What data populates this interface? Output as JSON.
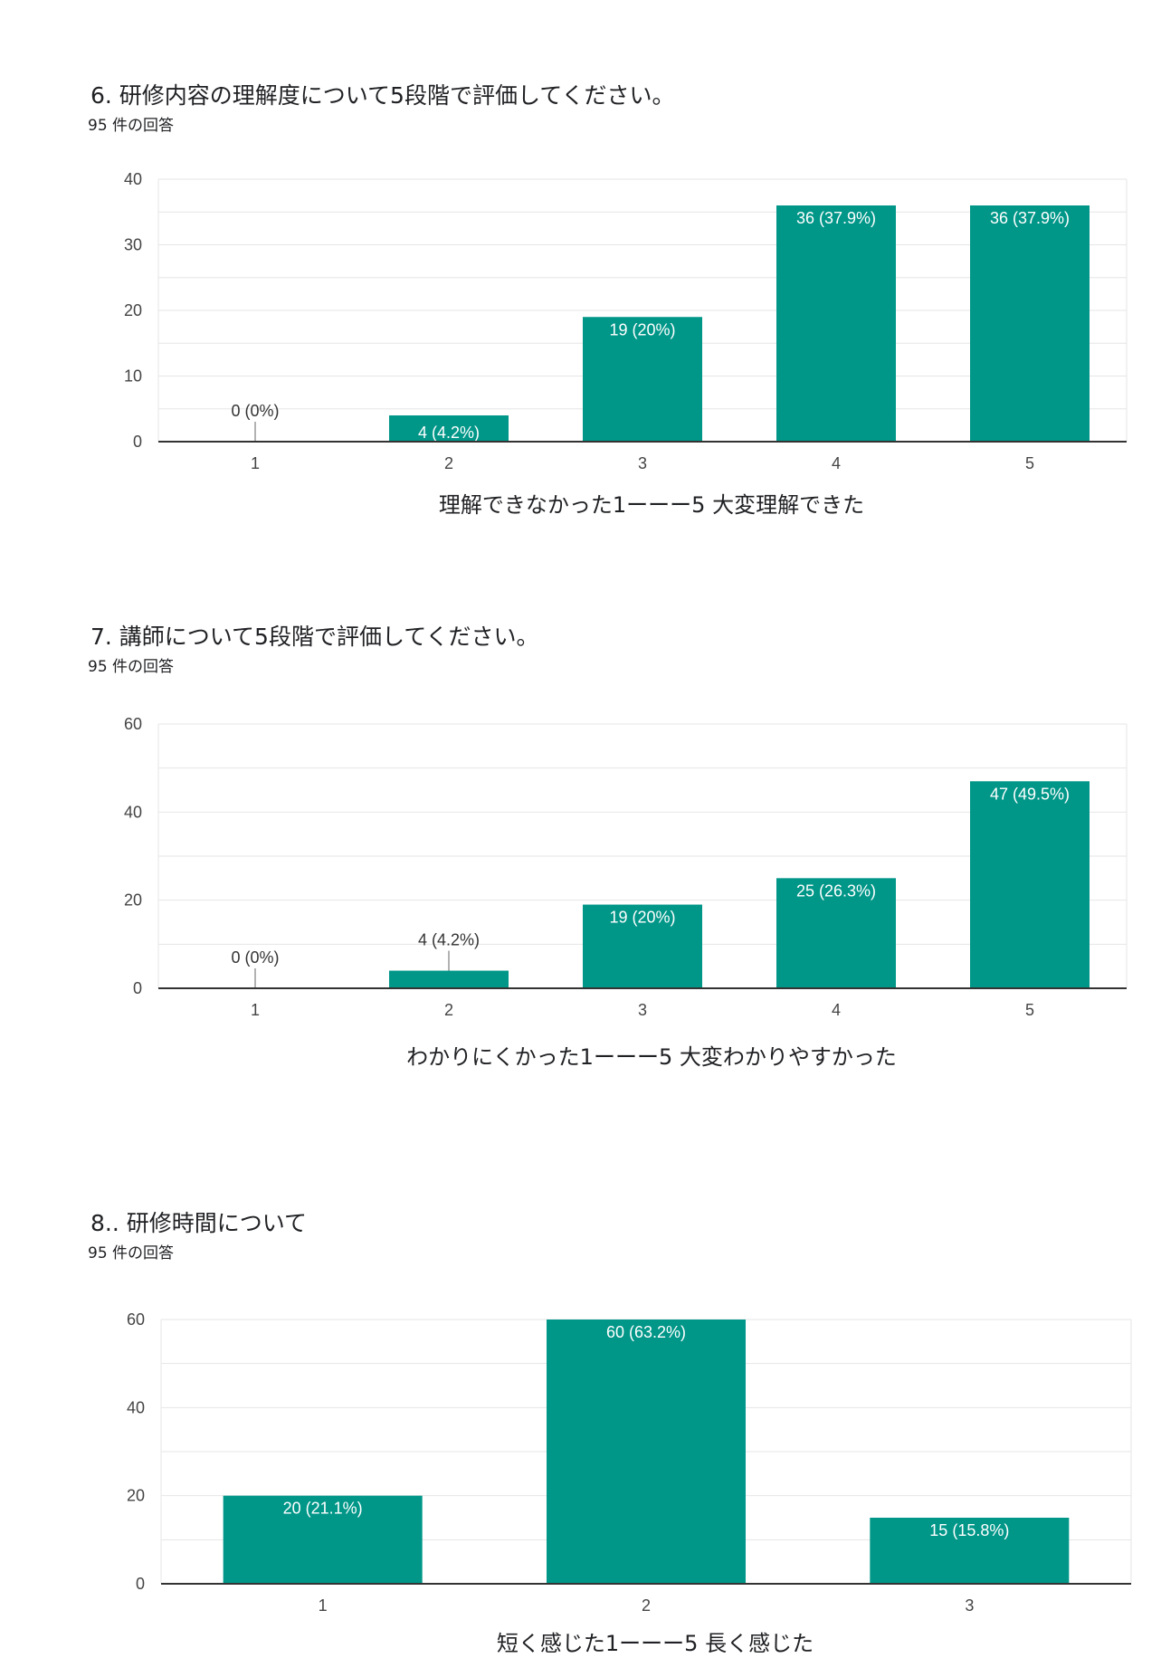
{
  "colors": {
    "bar": "#009688",
    "grid": "#e6e6e6",
    "axis": "#333333"
  },
  "charts": [
    {
      "title": "6.  研修内容の理解度について5段階で評価してください。",
      "responses": "95 件の回答"
    },
    {
      "title": "7.  講師について5段階で評価してください。",
      "responses": "95 件の回答"
    },
    {
      "title": "8..  研修時間について",
      "responses": "95 件の回答"
    }
  ],
  "chart_data": [
    {
      "type": "bar",
      "categories": [
        "1",
        "2",
        "3",
        "4",
        "5"
      ],
      "values": [
        0,
        4,
        19,
        36,
        36
      ],
      "labels": [
        "0 (0%)",
        "4 (4.2%)",
        "19 (20%)",
        "36 (37.9%)",
        "36 (37.9%)"
      ],
      "xlabel": "理解できなかった1ーーー5 大変理解できた",
      "ylim": [
        0,
        40
      ],
      "yticks": [
        0,
        10,
        20,
        30,
        40
      ],
      "grid": true
    },
    {
      "type": "bar",
      "categories": [
        "1",
        "2",
        "3",
        "4",
        "5"
      ],
      "values": [
        0,
        4,
        19,
        25,
        47
      ],
      "labels": [
        "0 (0%)",
        "4 (4.2%)",
        "19 (20%)",
        "25 (26.3%)",
        "47 (49.5%)"
      ],
      "xlabel": "わかりにくかった1ーーー5 大変わかりやすかった",
      "ylim": [
        0,
        60
      ],
      "yticks": [
        0,
        20,
        40,
        60
      ],
      "grid": true
    },
    {
      "type": "bar",
      "categories": [
        "1",
        "2",
        "3"
      ],
      "values": [
        20,
        60,
        15
      ],
      "labels": [
        "20 (21.1%)",
        "60 (63.2%)",
        "15 (15.8%)"
      ],
      "xlabel": "短く感じた1ーーー5 長く感じた",
      "ylim": [
        0,
        60
      ],
      "yticks": [
        0,
        20,
        40,
        60
      ],
      "grid": true
    }
  ]
}
